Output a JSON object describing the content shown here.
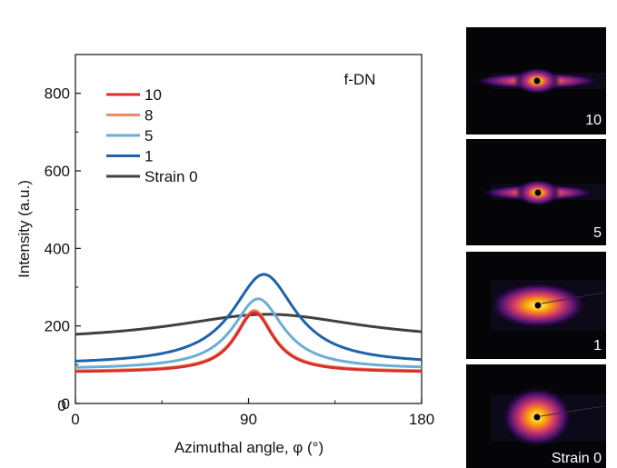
{
  "chart_data": {
    "type": "line",
    "annotation": "f-DN",
    "xlabel": "Azimuthal angle, φ (°)",
    "ylabel": "Intensity (a.u.)",
    "xlim": [
      0,
      180
    ],
    "ylim": [
      0,
      900
    ],
    "xticks": [
      0,
      90,
      180
    ],
    "yticks": [
      0,
      200,
      400,
      600,
      800
    ],
    "grid": false,
    "legend_position": "top-left",
    "series": [
      {
        "name": "10",
        "color": "#d7302a",
        "peak_x": 93,
        "baseline": 80,
        "peak_y": 235,
        "width": 12
      },
      {
        "name": "8",
        "color": "#ef8a62",
        "peak_x": 93,
        "baseline": 82,
        "peak_y": 240,
        "width": 12
      },
      {
        "name": "5",
        "color": "#6aaed6",
        "peak_x": 95,
        "baseline": 88,
        "peak_y": 270,
        "width": 16
      },
      {
        "name": "1",
        "color": "#1f63a8",
        "peak_x": 98,
        "baseline": 100,
        "peak_y": 333,
        "width": 20
      },
      {
        "name": "Strain 0",
        "color": "#404040",
        "peak_x": 100,
        "baseline": 160,
        "peak_y": 230,
        "width": 60
      }
    ]
  },
  "patterns": [
    {
      "label": "10",
      "style": "streak"
    },
    {
      "label": "5",
      "style": "streak"
    },
    {
      "label": "1",
      "style": "oval"
    },
    {
      "label": "Strain 0",
      "style": "round"
    }
  ]
}
